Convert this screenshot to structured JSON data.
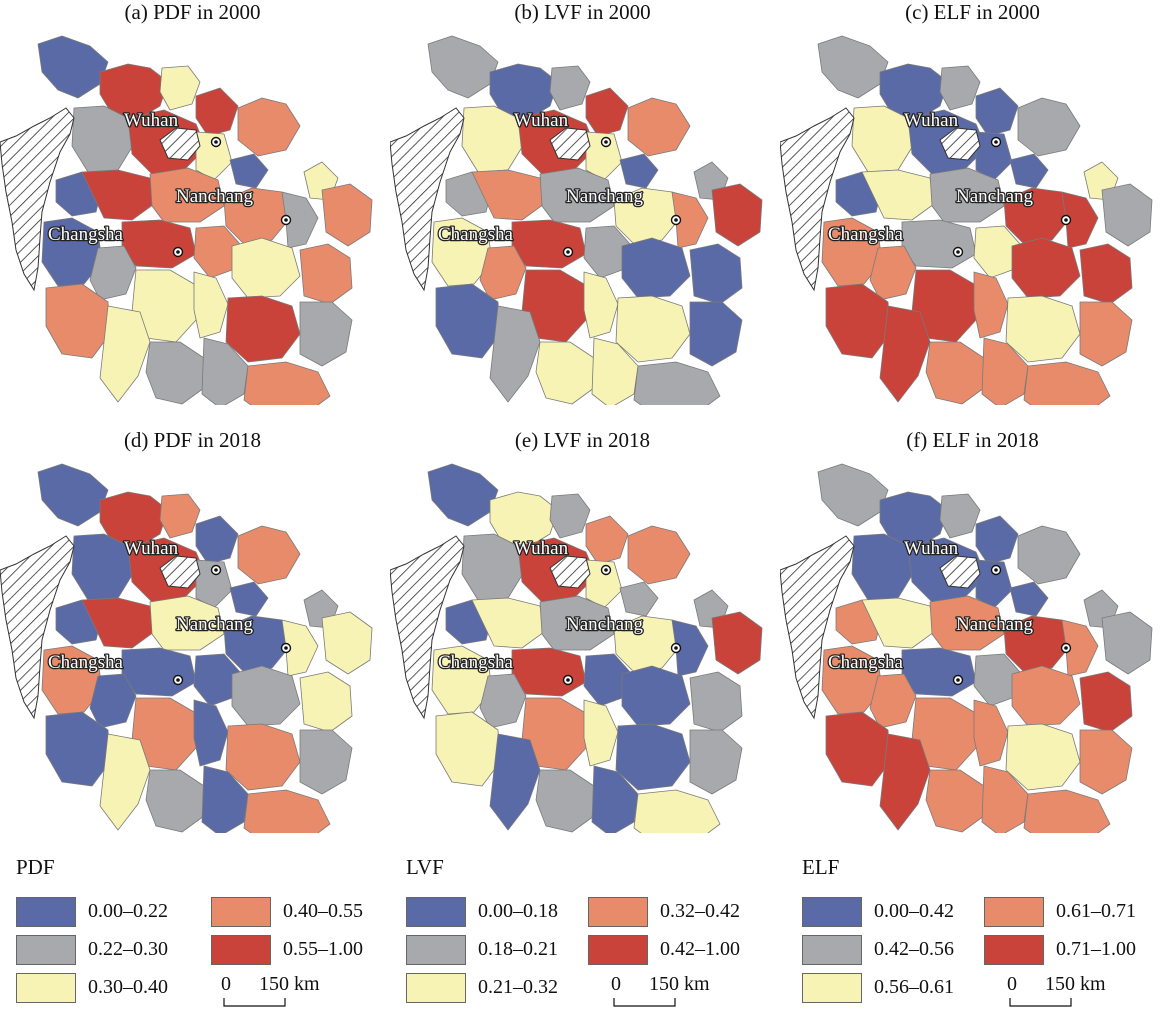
{
  "colors": {
    "blue": "#5a6aa6",
    "gray": "#a7a9ac",
    "yellow": "#f7f3b4",
    "orange": "#e88b6a",
    "red": "#c9433a",
    "border": "#7a7a7a",
    "hatch": "#222222"
  },
  "city_labels": {
    "wuhan": "Wuhan",
    "nanchang": "Nanchang",
    "changsha": "Changsha"
  },
  "panels": [
    {
      "title": "(a) PDF in 2000",
      "colors": [
        "blue",
        "red",
        "yellow",
        "red",
        "orange",
        "gray",
        "red",
        "yellow",
        "blue",
        "blue",
        "red",
        "orange",
        "yellow",
        "orange",
        "gray",
        "orange",
        "red",
        "orange",
        "yellow",
        "orange",
        "blue",
        "gray",
        "yellow",
        "yellow",
        "red",
        "gray",
        "orange",
        "yellow",
        "gray",
        "gray",
        "orange"
      ]
    },
    {
      "title": "(b) LVF in 2000",
      "colors": [
        "gray",
        "blue",
        "gray",
        "red",
        "orange",
        "yellow",
        "red",
        "yellow",
        "blue",
        "gray",
        "orange",
        "gray",
        "gray",
        "yellow",
        "orange",
        "red",
        "red",
        "gray",
        "blue",
        "blue",
        "yellow",
        "orange",
        "red",
        "yellow",
        "yellow",
        "blue",
        "blue",
        "gray",
        "yellow",
        "yellow",
        "gray"
      ]
    },
    {
      "title": "(c) ELF in 2000",
      "colors": [
        "gray",
        "blue",
        "gray",
        "blue",
        "gray",
        "yellow",
        "blue",
        "blue",
        "blue",
        "blue",
        "yellow",
        "gray",
        "yellow",
        "red",
        "red",
        "gray",
        "gray",
        "yellow",
        "red",
        "red",
        "orange",
        "orange",
        "red",
        "orange",
        "yellow",
        "orange",
        "red",
        "red",
        "orange",
        "orange",
        "orange"
      ]
    },
    {
      "title": "(d) PDF in 2018",
      "colors": [
        "blue",
        "red",
        "orange",
        "blue",
        "orange",
        "blue",
        "red",
        "gray",
        "blue",
        "blue",
        "red",
        "yellow",
        "gray",
        "blue",
        "yellow",
        "yellow",
        "blue",
        "blue",
        "gray",
        "yellow",
        "orange",
        "blue",
        "orange",
        "blue",
        "orange",
        "gray",
        "blue",
        "yellow",
        "gray",
        "blue",
        "orange"
      ]
    },
    {
      "title": "(e) LVF in 2018",
      "colors": [
        "blue",
        "yellow",
        "gray",
        "orange",
        "orange",
        "gray",
        "red",
        "yellow",
        "gray",
        "blue",
        "yellow",
        "gray",
        "gray",
        "yellow",
        "blue",
        "red",
        "red",
        "blue",
        "blue",
        "gray",
        "yellow",
        "gray",
        "orange",
        "yellow",
        "blue",
        "gray",
        "yellow",
        "blue",
        "gray",
        "blue",
        "yellow"
      ]
    },
    {
      "title": "(f) ELF in 2018",
      "colors": [
        "gray",
        "blue",
        "gray",
        "blue",
        "gray",
        "blue",
        "blue",
        "blue",
        "blue",
        "orange",
        "yellow",
        "orange",
        "gray",
        "red",
        "orange",
        "gray",
        "blue",
        "gray",
        "orange",
        "red",
        "orange",
        "orange",
        "orange",
        "orange",
        "yellow",
        "orange",
        "red",
        "red",
        "orange",
        "orange",
        "orange"
      ]
    }
  ],
  "legends": [
    {
      "title": "PDF",
      "scale_zero": "0",
      "scale_text": "150 km",
      "items": [
        {
          "label": "0.00–0.22",
          "color": "blue"
        },
        {
          "label": "0.40–0.55",
          "color": "orange"
        },
        {
          "label": "0.22–0.30",
          "color": "gray"
        },
        {
          "label": "0.55–1.00",
          "color": "red"
        },
        {
          "label": "0.30–0.40",
          "color": "yellow"
        }
      ]
    },
    {
      "title": "LVF",
      "scale_zero": "0",
      "scale_text": "150 km",
      "items": [
        {
          "label": "0.00–0.18",
          "color": "blue"
        },
        {
          "label": "0.32–0.42",
          "color": "orange"
        },
        {
          "label": "0.18–0.21",
          "color": "gray"
        },
        {
          "label": "0.42–1.00",
          "color": "red"
        },
        {
          "label": "0.21–0.32",
          "color": "yellow"
        }
      ]
    },
    {
      "title": "ELF",
      "scale_zero": "0",
      "scale_text": "150 km",
      "items": [
        {
          "label": "0.00–0.42",
          "color": "blue"
        },
        {
          "label": "0.61–0.71",
          "color": "orange"
        },
        {
          "label": "0.42–0.56",
          "color": "gray"
        },
        {
          "label": "0.71–1.00",
          "color": "red"
        },
        {
          "label": "0.56–0.61",
          "color": "yellow"
        }
      ]
    }
  ]
}
